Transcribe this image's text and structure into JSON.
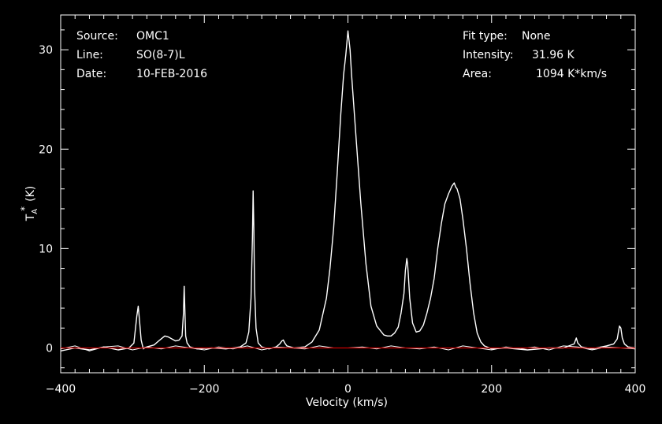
{
  "chart_data": {
    "type": "line",
    "xlabel": "Velocity (km/s)",
    "ylabel_main": "T",
    "ylabel_sub": "A",
    "ylabel_sup": "*",
    "ylabel_unit": "(K)",
    "xlim": [
      -400,
      400
    ],
    "ylim": [
      -2.5,
      33.5
    ],
    "xticks": [
      -400,
      -200,
      0,
      200,
      400
    ],
    "yticks": [
      0,
      10,
      20,
      30
    ],
    "baseline": 0,
    "grid": false,
    "colors": {
      "background": "#000000",
      "line": "#ffffff",
      "baseline": "#cc0000",
      "axes": "#ffffff"
    },
    "info_left": [
      {
        "key": "Source:",
        "value": "OMC1"
      },
      {
        "key": "Line:",
        "value": "SO(8-7)L"
      },
      {
        "key": "Date:",
        "value": "10-FEB-2016"
      }
    ],
    "info_right": [
      {
        "key": "Fit type:",
        "value": "None"
      },
      {
        "key": "Intensity:",
        "value": "31.96 K"
      },
      {
        "key": "Area:",
        "value": "1094 K*km/s"
      }
    ],
    "series": [
      {
        "x": [
          -400,
          -380,
          -360,
          -340,
          -320,
          -305,
          -298,
          -294,
          -292,
          -290,
          -288,
          -285,
          -280,
          -270,
          -262,
          -255,
          -250,
          -245,
          -240,
          -235,
          -231,
          -229,
          -228,
          -227,
          -226,
          -224,
          -220,
          -210,
          -190,
          -170,
          -150,
          -142,
          -138,
          -135,
          -133,
          -132,
          -131,
          -130,
          -128,
          -125,
          -120,
          -115,
          -110,
          -100,
          -95,
          -92,
          -90,
          -88,
          -85,
          -75,
          -60,
          -50,
          -40,
          -30,
          -25,
          -20,
          -15,
          -10,
          -6,
          -3,
          0,
          3,
          5,
          8,
          12,
          18,
          25,
          32,
          40,
          50,
          55,
          60,
          65,
          70,
          74,
          78,
          80,
          82,
          83,
          84,
          86,
          90,
          95,
          100,
          105,
          110,
          115,
          120,
          125,
          130,
          135,
          140,
          145,
          148,
          150,
          152,
          156,
          160,
          165,
          170,
          175,
          180,
          185,
          190,
          200,
          220,
          250,
          280,
          300,
          315,
          318,
          320,
          325,
          340,
          360,
          370,
          375,
          378,
          380,
          382,
          385,
          390,
          400
        ],
        "y": [
          -0.3,
          0,
          -0.2,
          0.1,
          -0.2,
          0,
          0.5,
          3.2,
          4.2,
          2.6,
          0.8,
          -0.1,
          0.1,
          0.3,
          0.8,
          1.2,
          1.1,
          0.9,
          0.7,
          0.8,
          1.2,
          3.5,
          6.2,
          3.8,
          1.2,
          0.5,
          0.1,
          -0.1,
          0,
          -0.1,
          0.1,
          0.5,
          1.6,
          5.0,
          11.0,
          15.8,
          12.0,
          6.0,
          2.0,
          0.5,
          0.1,
          0,
          -0.1,
          0.1,
          0.4,
          0.7,
          0.8,
          0.5,
          0.2,
          0,
          0.1,
          0.6,
          1.8,
          5.0,
          8.0,
          12.0,
          17.5,
          23.5,
          27.5,
          29.5,
          31.9,
          30.0,
          27.5,
          24.5,
          20.5,
          14.5,
          8.5,
          4.2,
          2.2,
          1.3,
          1.2,
          1.2,
          1.5,
          2.1,
          3.5,
          5.5,
          7.8,
          9.0,
          8.5,
          7.5,
          5.0,
          2.5,
          1.6,
          1.7,
          2.3,
          3.5,
          5.0,
          7.0,
          10.0,
          12.5,
          14.5,
          15.5,
          16.3,
          16.6,
          16.2,
          16.0,
          15.0,
          13.0,
          10.0,
          6.5,
          3.5,
          1.5,
          0.6,
          0.2,
          -0.1,
          0,
          -0.2,
          0,
          0,
          0.4,
          1.0,
          0.5,
          0.1,
          -0.1,
          0.2,
          0.4,
          0.9,
          2.2,
          2.0,
          1.0,
          0.4,
          0.1,
          0
        ]
      },
      {
        "x": [
          -400,
          -380,
          -360,
          -340,
          -320,
          -300,
          -280,
          -260,
          -240,
          -220,
          -200,
          -180,
          -160,
          -140,
          -120,
          -100,
          -80,
          -60,
          -40,
          -20,
          0,
          20,
          40,
          60,
          80,
          100,
          120,
          140,
          160,
          180,
          200,
          220,
          240,
          260,
          280,
          300,
          320,
          340,
          360,
          380,
          400
        ],
        "y": [
          -0.1,
          0.2,
          -0.3,
          0.1,
          0.2,
          -0.2,
          0.1,
          -0.1,
          0.2,
          0,
          -0.2,
          0.1,
          -0.1,
          0.2,
          -0.2,
          0.1,
          0,
          -0.1,
          0.2,
          0,
          0,
          0.1,
          -0.1,
          0.2,
          0,
          -0.1,
          0.1,
          -0.2,
          0.2,
          0,
          -0.2,
          0.1,
          -0.1,
          0.1,
          -0.2,
          0.2,
          0.1,
          -0.2,
          0.1,
          0,
          -0.1
        ]
      }
    ]
  }
}
